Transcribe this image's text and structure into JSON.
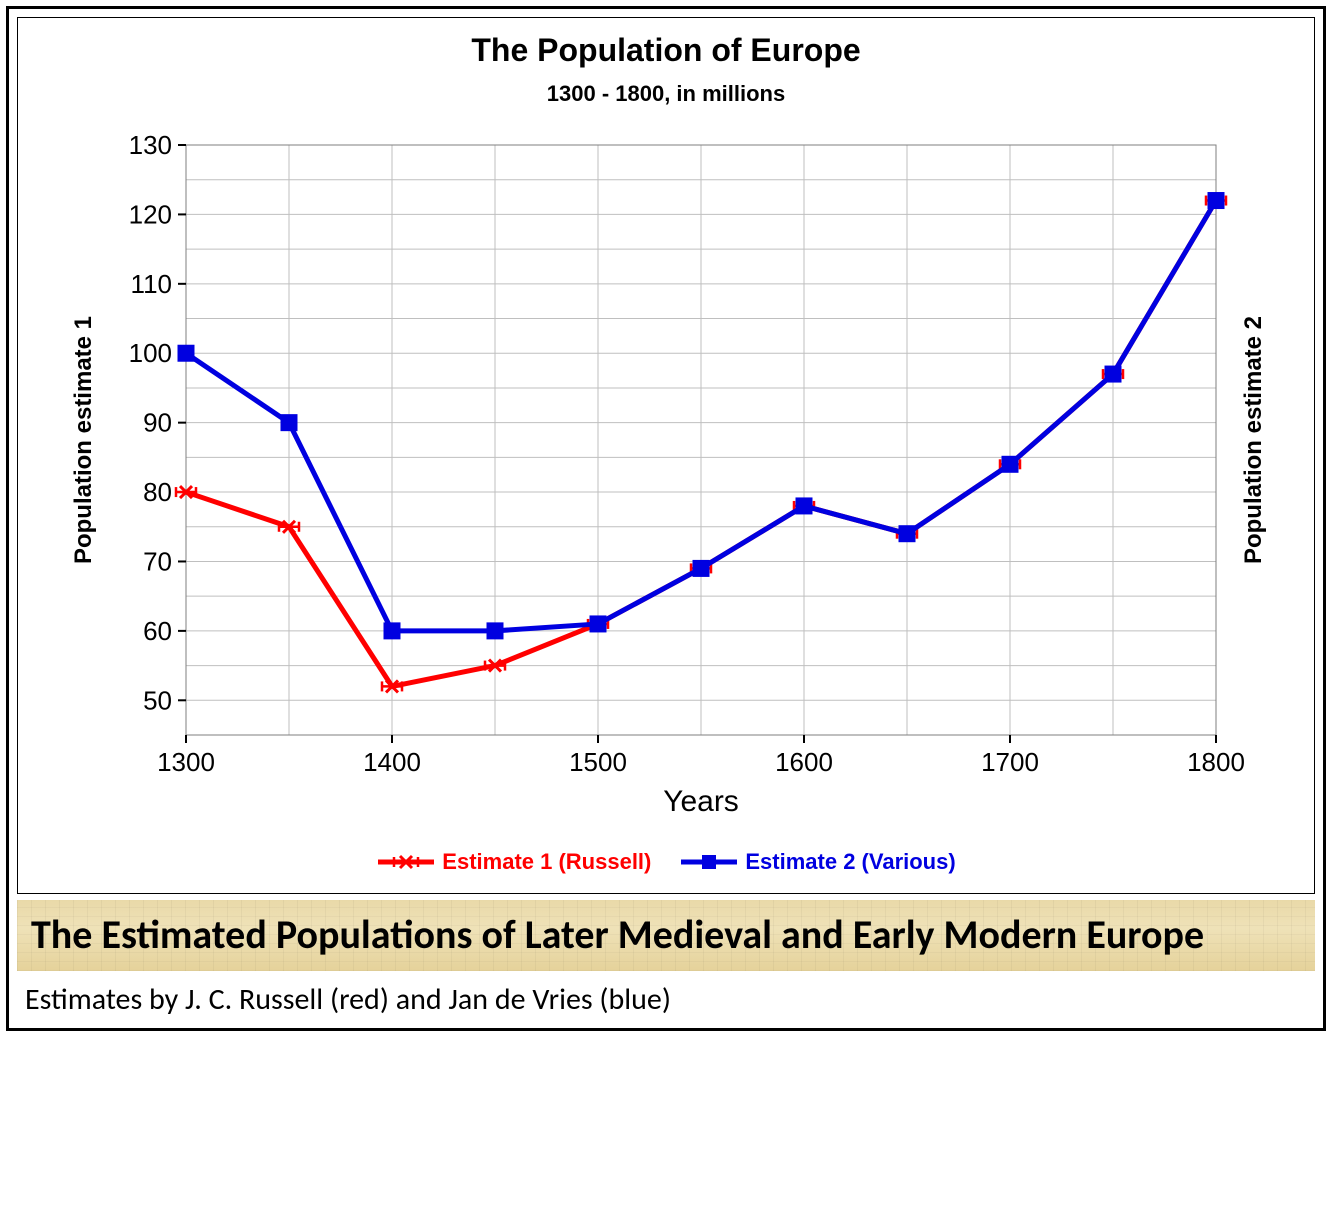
{
  "chart": {
    "type": "line",
    "title": "The Population of Europe",
    "title_fontsize": 32,
    "subtitle": "1300 - 1800, in millions",
    "subtitle_fontsize": 22,
    "x_label": "Years",
    "y_label_left": "Population estimate 1",
    "y_label_right": "Population estimate 2",
    "axis_title_fontsize": 24,
    "axis_label_fontsize": 26,
    "tick_fontsize": 26,
    "x_values": [
      1300,
      1350,
      1400,
      1450,
      1500,
      1550,
      1600,
      1650,
      1700,
      1750,
      1800
    ],
    "xlim": [
      1300,
      1800
    ],
    "ylim": [
      45,
      130
    ],
    "ytick_step": 10,
    "y_ticks": [
      50,
      60,
      70,
      80,
      90,
      100,
      110,
      120,
      130
    ],
    "xtick_step": 100,
    "x_ticks_major": [
      1300,
      1400,
      1500,
      1600,
      1700,
      1800
    ],
    "x_minor_step": 50,
    "y_minor_step": 5,
    "grid_color": "#bfbfbf",
    "axis_color": "#000000",
    "background_color": "#ffffff",
    "plot_border_color": "#7f7f7f",
    "line_width": 5,
    "marker_size": 8,
    "series": [
      {
        "name": "Estimate 1 (Russell)",
        "color": "#ff0000",
        "marker": "x-errorbar",
        "values": [
          80,
          75,
          52,
          55,
          61,
          69,
          78,
          74,
          84,
          97,
          122
        ]
      },
      {
        "name": "Estimate 2 (Various)",
        "color": "#0000e0",
        "marker": "square",
        "values": [
          100,
          90,
          60,
          60,
          61,
          69,
          78,
          74,
          84,
          97,
          122
        ]
      }
    ],
    "legend": {
      "position": "bottom",
      "fontsize": 22,
      "items": [
        {
          "label": "Estimate 1 (Russell)",
          "color": "#ff0000",
          "marker": "x-errorbar"
        },
        {
          "label": "Estimate 2 (Various)",
          "color": "#0000e0",
          "marker": "square"
        }
      ]
    }
  },
  "band": {
    "text": "The Estimated Populations of Later Medieval and Early Modern Europe",
    "fontsize": 40,
    "color": "#000000",
    "background_base": "#e9d9a8"
  },
  "caption": {
    "text": "Estimates by J. C. Russell (red) and Jan de Vries (blue)",
    "fontsize": 30,
    "color": "#000000"
  }
}
